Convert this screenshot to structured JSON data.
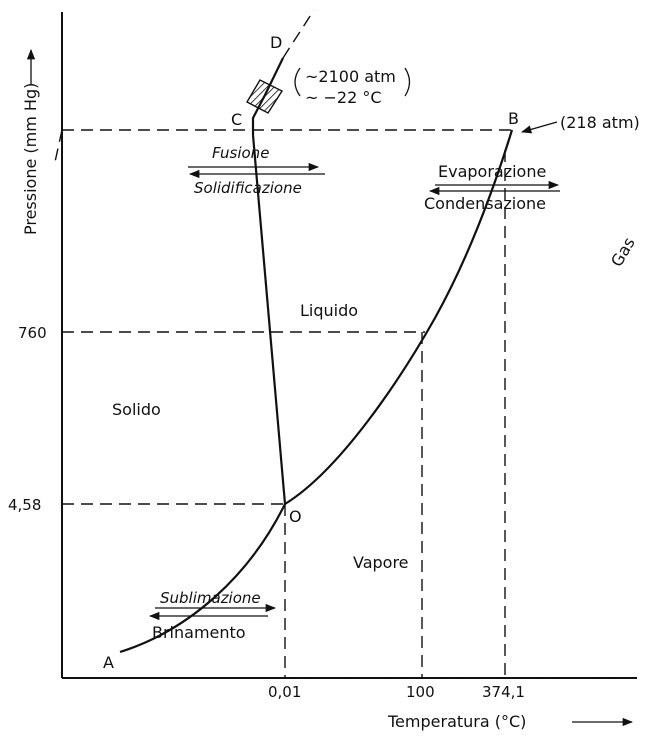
{
  "axes": {
    "y_label": "Pressione (mm Hg)",
    "x_label": "Temperatura (°C)",
    "y_ticks": [
      "760",
      "4,58"
    ],
    "x_ticks": [
      "0,01",
      "100",
      "374,1"
    ]
  },
  "regions": {
    "solid": "Solido",
    "liquid": "Liquido",
    "vapor": "Vapore",
    "gas": "Gas"
  },
  "points": {
    "A": "A",
    "B": "B",
    "C": "C",
    "D": "D",
    "O": "O"
  },
  "annotations": {
    "critical_pressure": "(218 atm)",
    "c_pressure": "~2100 atm",
    "c_temperature": "~ −22 °C"
  },
  "transitions": {
    "melting": "Fusione",
    "solidification": "Solidificazione",
    "evaporation": "Evaporazione",
    "condensation": "Condensazione",
    "sublimation": "Sublimazione",
    "deposition": "Brinamento"
  }
}
